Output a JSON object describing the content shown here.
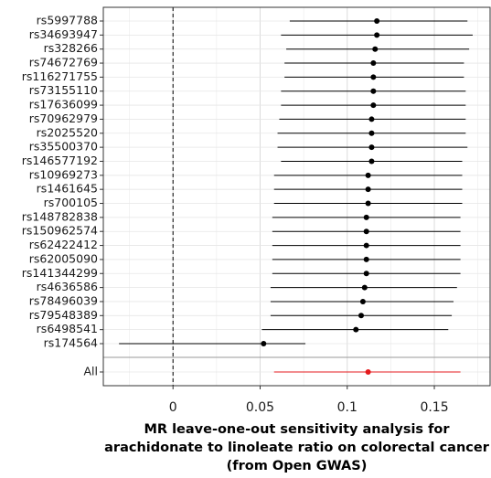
{
  "chart_data": {
    "type": "forest",
    "categories": [
      "rs5997788",
      "rs34693947",
      "rs328266",
      "rs74672769",
      "rs116271755",
      "rs73155110",
      "rs17636099",
      "rs70962979",
      "rs2025520",
      "rs35500370",
      "rs146577192",
      "rs10969273",
      "rs1461645",
      "rs700105",
      "rs148782838",
      "rs150962574",
      "rs62422412",
      "rs62005090",
      "rs141344299",
      "rs4636586",
      "rs78496039",
      "rs79548389",
      "rs6498541",
      "rs174564"
    ],
    "values": [
      0.117,
      0.117,
      0.116,
      0.115,
      0.115,
      0.115,
      0.115,
      0.114,
      0.114,
      0.114,
      0.114,
      0.112,
      0.112,
      0.112,
      0.111,
      0.111,
      0.111,
      0.111,
      0.111,
      0.11,
      0.109,
      0.108,
      0.105,
      0.052
    ],
    "lower": [
      0.067,
      0.062,
      0.065,
      0.064,
      0.064,
      0.062,
      0.062,
      0.061,
      0.06,
      0.06,
      0.062,
      0.058,
      0.058,
      0.058,
      0.057,
      0.057,
      0.057,
      0.057,
      0.057,
      0.056,
      0.056,
      0.056,
      0.051,
      -0.031
    ],
    "upper": [
      0.169,
      0.172,
      0.17,
      0.167,
      0.167,
      0.168,
      0.168,
      0.168,
      0.168,
      0.169,
      0.166,
      0.166,
      0.166,
      0.166,
      0.165,
      0.165,
      0.165,
      0.165,
      0.165,
      0.163,
      0.161,
      0.16,
      0.158,
      0.076
    ],
    "color": "#000000",
    "summary": {
      "label": "All",
      "value": 0.112,
      "lower": 0.058,
      "upper": 0.165,
      "color": "#e41a1c"
    },
    "xlim": [
      -0.04,
      0.182
    ],
    "xticks": [
      0,
      0.05,
      0.1,
      0.15
    ],
    "refline": 0,
    "grid": true,
    "xlabel": [
      "MR leave-one-out sensitivity analysis for",
      "arachidonate to linoleate ratio on colorectal cancer",
      "(from Open GWAS)"
    ]
  }
}
